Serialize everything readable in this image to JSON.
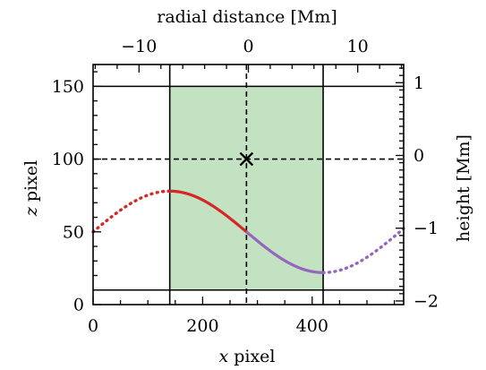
{
  "chart_data": {
    "type": "line",
    "xlabel_var": "x",
    "xlabel_text": " pixel",
    "ylabel_var": "z",
    "ylabel_text": " pixel",
    "top_xlabel": "radial distance [Mm]",
    "right_ylabel": "height [Mm]",
    "xlim": [
      0,
      567
    ],
    "ylim": [
      0,
      165
    ],
    "top_xlim": [
      -14.2,
      14.2
    ],
    "right_ylim": [
      -2.05,
      1.25
    ],
    "x_ticks": [
      0,
      200,
      400
    ],
    "y_ticks": [
      0,
      50,
      100,
      150
    ],
    "top_ticks": [
      {
        "value": -10,
        "label": "−10"
      },
      {
        "value": 0,
        "label": "0"
      },
      {
        "value": 10,
        "label": "10"
      }
    ],
    "right_ticks": [
      {
        "value": 1,
        "label": "1"
      },
      {
        "value": 0,
        "label": "0"
      },
      {
        "value": -1,
        "label": "−1"
      },
      {
        "value": -2,
        "label": "−2"
      }
    ],
    "shaded_region": {
      "x": [
        140,
        420
      ],
      "y": [
        10,
        150
      ],
      "color": "#c2e2c2"
    },
    "vertical_lines": [
      140,
      420
    ],
    "horizontal_lines": [
      10,
      150
    ],
    "dashed_lines": {
      "x": 280,
      "y": 100
    },
    "marker": {
      "x": 280,
      "y": 100,
      "symbol": "x"
    },
    "curve": {
      "center_x": 280,
      "center_y": 50,
      "amplitude": 28,
      "half_period": 280
    },
    "series": [
      {
        "segment": [
          0,
          140
        ],
        "style": "dotted",
        "color": "#d62728"
      },
      {
        "segment": [
          140,
          280
        ],
        "style": "solid",
        "color": "#d62728"
      },
      {
        "segment": [
          280,
          420
        ],
        "style": "solid",
        "color": "#9467bd"
      },
      {
        "segment": [
          420,
          567
        ],
        "style": "dotted",
        "color": "#9467bd"
      }
    ],
    "grid": false,
    "legend": "none"
  }
}
